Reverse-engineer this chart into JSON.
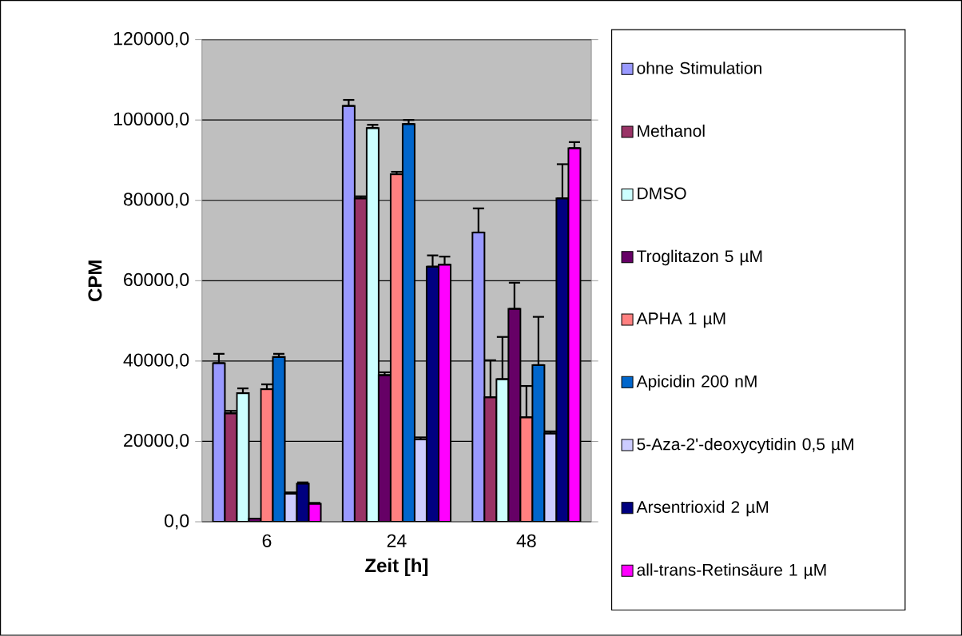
{
  "chart_data": {
    "type": "bar",
    "xlabel": "Zeit [h]",
    "ylabel": "CPM",
    "categories": [
      "6",
      "24",
      "48"
    ],
    "series": [
      {
        "name": "ohne Stimulation",
        "color": "#9999ff",
        "values": [
          39500,
          103500,
          72000
        ],
        "errors": [
          [
            39500,
            41800
          ],
          [
            103500,
            105000
          ],
          [
            72000,
            78000
          ]
        ]
      },
      {
        "name": "Methanol",
        "color": "#993366",
        "values": [
          27000,
          80500,
          31000
        ],
        "errors": [
          [
            27000,
            27600
          ],
          [
            80500,
            81000
          ],
          [
            31000,
            40200
          ]
        ]
      },
      {
        "name": "DMSO",
        "color": "#ccffff",
        "values": [
          32000,
          98000,
          35500
        ],
        "errors": [
          [
            32000,
            33200
          ],
          [
            98000,
            98800
          ],
          [
            35500,
            46000
          ]
        ]
      },
      {
        "name": "Troglitazon 5 µM",
        "color": "#660066",
        "values": [
          800,
          36500,
          53000
        ],
        "errors": [
          null,
          [
            36500,
            37200
          ],
          [
            53000,
            59500
          ]
        ]
      },
      {
        "name": "APHA 1 µM",
        "color": "#ff8080",
        "values": [
          33000,
          86500,
          26000
        ],
        "errors": [
          [
            33000,
            34200
          ],
          [
            86500,
            87100
          ],
          [
            26000,
            33800
          ]
        ]
      },
      {
        "name": "Apicidin 200 nM",
        "color": "#0066cc",
        "values": [
          41000,
          99000,
          39000
        ],
        "errors": [
          [
            41000,
            41800
          ],
          [
            99000,
            100000
          ],
          [
            39000,
            51000
          ]
        ]
      },
      {
        "name": "5-Aza-2'-deoxycytidin 0,5 µM",
        "color": "#ccccff",
        "values": [
          7000,
          20500,
          22000
        ],
        "errors": [
          [
            7000,
            7300
          ],
          [
            20500,
            21000
          ],
          [
            22000,
            22500
          ]
        ]
      },
      {
        "name": "Arsentrioxid 2 µM",
        "color": "#000080",
        "values": [
          9500,
          63500,
          80500
        ],
        "errors": [
          [
            9500,
            9800
          ],
          [
            63500,
            66300
          ],
          [
            80500,
            89000
          ]
        ]
      },
      {
        "name": "all-trans-Retinsäure 1 µM",
        "color": "#ff00ff",
        "values": [
          4500,
          64000,
          93000
        ],
        "errors": [
          [
            4500,
            4700
          ],
          [
            64000,
            66000
          ],
          [
            93000,
            94500
          ]
        ]
      }
    ],
    "ylim": [
      0,
      120000
    ],
    "yticks": [
      {
        "value": 0,
        "label": "0,0"
      },
      {
        "value": 20000,
        "label": "20000,0"
      },
      {
        "value": 40000,
        "label": "40000,0"
      },
      {
        "value": 60000,
        "label": "60000,0"
      },
      {
        "value": 80000,
        "label": "80000,0"
      },
      {
        "value": 100000,
        "label": "100000,0"
      },
      {
        "value": 120000,
        "label": "120000,0"
      }
    ],
    "grid": "y",
    "legend": "right"
  }
}
